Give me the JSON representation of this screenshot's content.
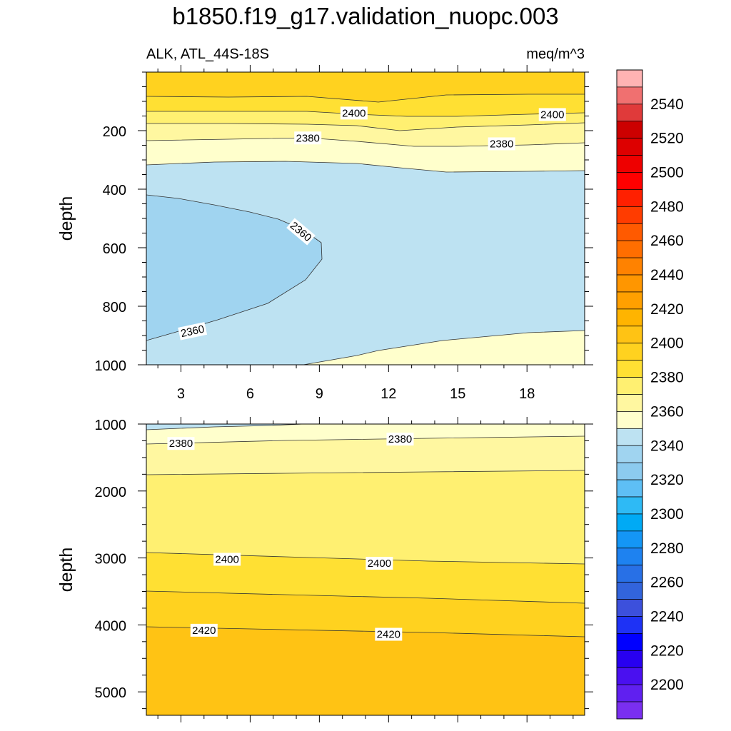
{
  "title": "b1850.f19_g17.validation_nuopc.003",
  "subtitle_left": "ALK, ATL_44S-18S",
  "subtitle_right": "meq/m^3",
  "colors": {
    "band_2350_2360": "#a0d4f0",
    "band_2360_2370": "#bde2f2",
    "band_2370_2380": "#ffffcc",
    "band_2380_2390": "#fff7a0",
    "band_2390_2400": "#fff071",
    "band_2400_2410": "#ffe033",
    "band_2410_2420": "#ffd21f",
    "band_2420_2430": "#ffc314"
  },
  "chart_data": [
    {
      "type": "heatmap",
      "subtype": "filled-contour",
      "panel": "upper",
      "ylabel": "depth",
      "xlabel": "",
      "xlim": [
        1.5,
        20.5
      ],
      "ylim": [
        1000,
        0
      ],
      "xticks": [
        3,
        6,
        9,
        12,
        15,
        18
      ],
      "yticks": [
        200,
        400,
        600,
        800,
        1000
      ],
      "contour_labels": [
        {
          "value": 2400,
          "x": 10.5,
          "y": 140,
          "rotate": 0
        },
        {
          "value": 2400,
          "x": 19.1,
          "y": 145,
          "rotate": 0
        },
        {
          "value": 2380,
          "x": 8.5,
          "y": 225,
          "rotate": 0
        },
        {
          "value": 2380,
          "x": 16.9,
          "y": 245,
          "rotate": 0
        },
        {
          "value": 2360,
          "x": 8.2,
          "y": 545,
          "rotate": 40
        },
        {
          "value": 2360,
          "x": 3.5,
          "y": 885,
          "rotate": -12
        }
      ]
    },
    {
      "type": "heatmap",
      "subtype": "filled-contour",
      "panel": "lower",
      "ylabel": "depth",
      "xlabel": "",
      "xlim": [
        1.5,
        20.5
      ],
      "ylim": [
        5350,
        1000
      ],
      "xticks": [
        3,
        6,
        9,
        12,
        15,
        18
      ],
      "yticks": [
        1000,
        2000,
        3000,
        4000,
        5000
      ],
      "contour_labels": [
        {
          "value": 2380,
          "x": 3.0,
          "y": 1290,
          "rotate": 0
        },
        {
          "value": 2380,
          "x": 12.5,
          "y": 1225,
          "rotate": 0
        },
        {
          "value": 2400,
          "x": 5.0,
          "y": 3020,
          "rotate": 0
        },
        {
          "value": 2400,
          "x": 11.6,
          "y": 3080,
          "rotate": 0
        },
        {
          "value": 2420,
          "x": 4.0,
          "y": 4080,
          "rotate": 0
        },
        {
          "value": 2420,
          "x": 12.0,
          "y": 4140,
          "rotate": 0
        }
      ]
    }
  ],
  "colorbar": {
    "labels": [
      2540,
      2520,
      2500,
      2480,
      2460,
      2440,
      2420,
      2400,
      2380,
      2360,
      2340,
      2320,
      2300,
      2280,
      2260,
      2240,
      2220,
      2200
    ],
    "colors_top_to_bottom": [
      "#ffb3b3",
      "#f07070",
      "#e03a3a",
      "#cc0000",
      "#dd0000",
      "#ee0000",
      "#ff0000",
      "#ff2000",
      "#ff3c00",
      "#ff5a00",
      "#ff6e00",
      "#ff8200",
      "#ff9600",
      "#ffa000",
      "#ffb400",
      "#ffc314",
      "#ffd21f",
      "#ffe033",
      "#fff071",
      "#fff7a0",
      "#ffffcc",
      "#bde2f2",
      "#a0d4f0",
      "#8ccbef",
      "#5ebff5",
      "#2ebaf5",
      "#00aaf5",
      "#1496f5",
      "#1e82f0",
      "#2870e6",
      "#3264dc",
      "#3c50dc",
      "#1e32f5",
      "#0000ff",
      "#2800f0",
      "#4a10f0",
      "#6020f0",
      "#7a2ff0"
    ]
  }
}
